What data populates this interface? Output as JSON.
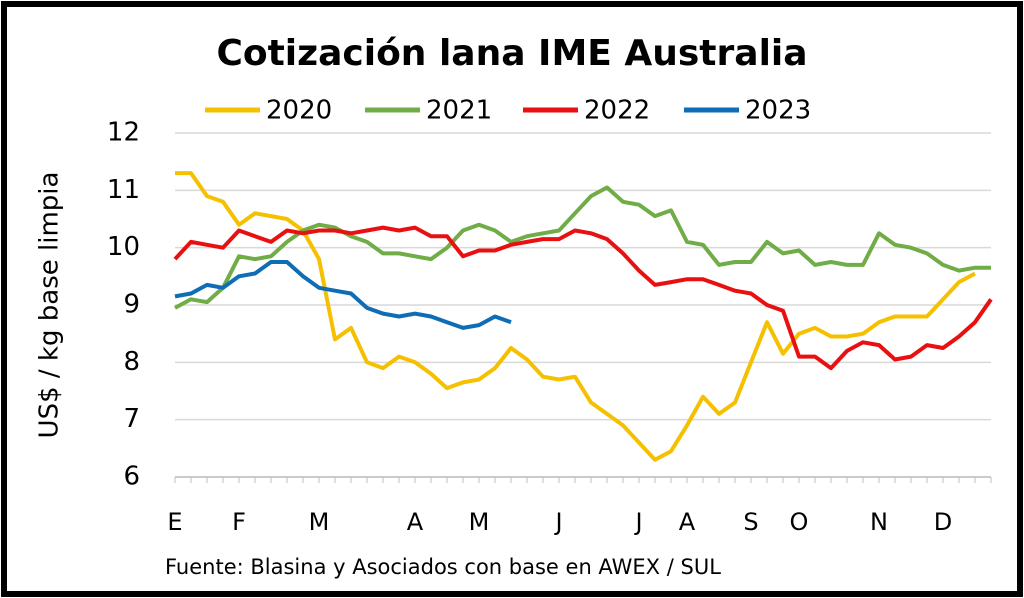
{
  "chart_data": {
    "type": "line",
    "title": "Cotización lana IME Australia",
    "y_label": "US$ / kg base limpia",
    "source": "Fuente: Blasina y Asociados con base en AWEX / SUL",
    "categories": [
      "E",
      null,
      null,
      null,
      "F",
      null,
      null,
      null,
      null,
      "M",
      null,
      null,
      null,
      null,
      null,
      "A",
      null,
      null,
      null,
      "M",
      null,
      null,
      null,
      null,
      "J",
      null,
      null,
      null,
      null,
      "J",
      null,
      null,
      "A",
      null,
      null,
      null,
      "S",
      null,
      null,
      "O",
      null,
      null,
      null,
      null,
      "N",
      null,
      null,
      null,
      "D",
      null,
      null,
      null
    ],
    "series": [
      {
        "name": "2020",
        "color": "#f5c000",
        "values": [
          11.3,
          11.3,
          10.9,
          10.8,
          10.4,
          10.6,
          10.55,
          10.5,
          10.3,
          9.8,
          8.4,
          8.6,
          8.0,
          7.9,
          8.1,
          8.0,
          7.8,
          7.55,
          7.65,
          7.7,
          7.9,
          8.25,
          8.05,
          7.75,
          7.7,
          7.75,
          7.3,
          7.1,
          6.9,
          6.6,
          6.3,
          6.45,
          6.9,
          7.4,
          7.1,
          7.3,
          8.0,
          8.7,
          8.15,
          8.5,
          8.6,
          8.45,
          8.45,
          8.5,
          8.7,
          8.8,
          8.8,
          8.8,
          9.1,
          9.4,
          9.55,
          null
        ]
      },
      {
        "name": "2021",
        "color": "#70ad47",
        "values": [
          8.95,
          9.1,
          9.05,
          9.3,
          9.85,
          9.8,
          9.85,
          10.1,
          10.3,
          10.4,
          10.35,
          10.2,
          10.1,
          9.9,
          9.9,
          9.85,
          9.8,
          10.0,
          10.3,
          10.4,
          10.3,
          10.1,
          10.2,
          10.25,
          10.3,
          10.6,
          10.9,
          11.05,
          10.8,
          10.75,
          10.55,
          10.65,
          10.1,
          10.05,
          9.7,
          9.75,
          9.75,
          10.1,
          9.9,
          9.95,
          9.7,
          9.75,
          9.7,
          9.7,
          10.25,
          10.05,
          10.0,
          9.9,
          9.7,
          9.6,
          9.65,
          9.65
        ]
      },
      {
        "name": "2022",
        "color": "#e81010",
        "values": [
          9.8,
          10.1,
          10.05,
          10.0,
          10.3,
          10.2,
          10.1,
          10.3,
          10.25,
          10.3,
          10.3,
          10.25,
          10.3,
          10.35,
          10.3,
          10.35,
          10.2,
          10.2,
          9.85,
          9.95,
          9.95,
          10.05,
          10.1,
          10.15,
          10.15,
          10.3,
          10.25,
          10.15,
          9.9,
          9.6,
          9.35,
          9.4,
          9.45,
          9.45,
          9.35,
          9.25,
          9.2,
          9.0,
          8.9,
          8.1,
          8.1,
          7.9,
          8.2,
          8.35,
          8.3,
          8.05,
          8.1,
          8.3,
          8.25,
          8.45,
          8.7,
          9.1
        ]
      },
      {
        "name": "2023",
        "color": "#0f6db5",
        "values": [
          9.15,
          9.2,
          9.35,
          9.3,
          9.5,
          9.55,
          9.75,
          9.75,
          9.5,
          9.3,
          9.25,
          9.2,
          8.95,
          8.85,
          8.8,
          8.85,
          8.8,
          8.7,
          8.6,
          8.65,
          8.8,
          8.7,
          null,
          null,
          null,
          null,
          null,
          null,
          null,
          null,
          null,
          null,
          null,
          null,
          null,
          null,
          null,
          null,
          null,
          null,
          null,
          null,
          null,
          null,
          null,
          null,
          null,
          null,
          null,
          null,
          null,
          null
        ]
      }
    ],
    "ylim": [
      6,
      12
    ],
    "yticks": [
      6,
      7,
      8,
      9,
      10,
      11,
      12
    ],
    "grid": true
  }
}
